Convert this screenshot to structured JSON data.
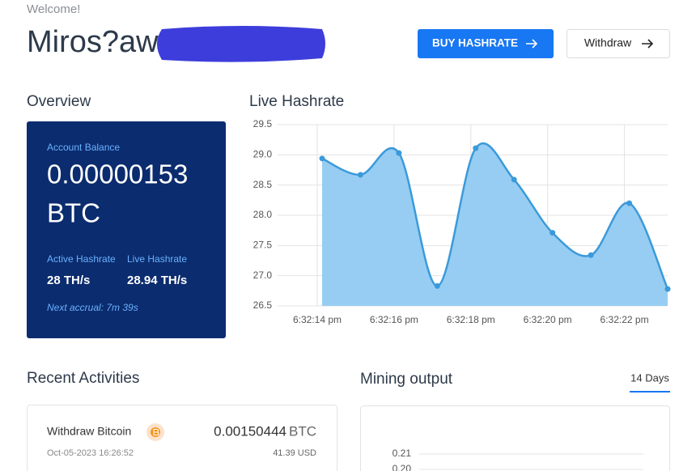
{
  "header": {
    "welcome": "Welcome!",
    "name": "Miros?aw",
    "buy_button": "BUY HASHRATE",
    "withdraw_button": "Withdraw"
  },
  "overview": {
    "title": "Overview",
    "balance_label": "Account Balance",
    "balance": "0.00000153",
    "unit": "BTC",
    "active_label": "Active Hashrate",
    "live_label": "Live Hashrate",
    "active_value": "28 TH/s",
    "live_value": "28.94 TH/s",
    "next_accrual": "Next accrual: 7m 39s"
  },
  "activities": {
    "title": "Recent Activities",
    "items": [
      {
        "title": "Withdraw Bitcoin",
        "date": "Oct-05-2023 16:26:52",
        "amount": "0.00150444",
        "unit": "BTC",
        "usd": "41.39 USD"
      }
    ]
  },
  "mining": {
    "tab": "14 Days"
  },
  "chart_data": [
    {
      "type": "line",
      "title": "Live Hashrate",
      "categories": [
        "6:32:14 pm",
        null,
        "6:32:16 pm",
        null,
        "6:32:18 pm",
        null,
        "6:32:20 pm",
        null,
        "6:32:22 pm",
        null
      ],
      "values": [
        28.94,
        28.67,
        29.03,
        26.83,
        29.11,
        28.59,
        27.71,
        27.34,
        28.2,
        26.78
      ],
      "color": "#3b9ad9",
      "fill": "#97cdf3",
      "smooth": true,
      "ylim": [
        26.5,
        29.5
      ],
      "yticks": [
        26.5,
        {
          "value": 27,
          "label": "27.0"
        },
        27.5,
        {
          "value": 28,
          "label": "28.0"
        },
        28.5,
        {
          "value": 29,
          "label": "29.0"
        },
        29.5
      ],
      "grid": true
    },
    {
      "type": "line",
      "title": "Mining output",
      "ylim": [
        0.19,
        0.215
      ],
      "yticks": [
        {
          "value": 0.2,
          "label": "0.20"
        },
        0.21
      ],
      "grid": true
    }
  ]
}
